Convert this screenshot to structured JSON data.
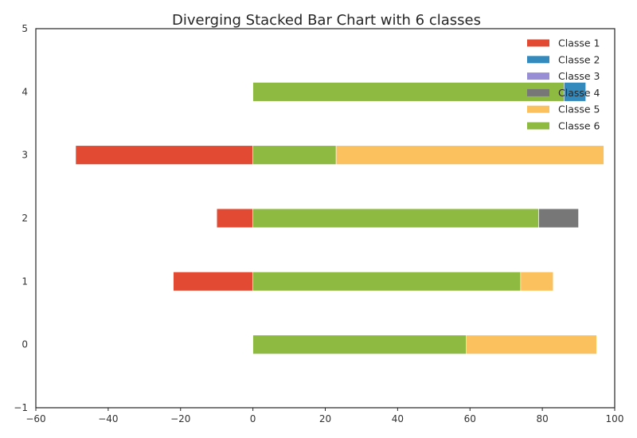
{
  "chart_data": {
    "type": "bar",
    "orientation": "horizontal",
    "stacked": true,
    "diverging": true,
    "title": "Diverging Stacked Bar Chart with 6 classes",
    "xlabel": "",
    "ylabel": "",
    "xlim": [
      -60,
      100
    ],
    "ylim": [
      -1,
      5
    ],
    "x_ticks": [
      -60,
      -40,
      -20,
      0,
      20,
      40,
      60,
      80,
      100
    ],
    "y_ticks": [
      -1,
      0,
      1,
      2,
      3,
      4,
      5
    ],
    "categories": [
      0,
      1,
      2,
      3,
      4
    ],
    "grid": false,
    "legend_position": "top-right",
    "series": [
      {
        "name": "Classe 1",
        "color": "#e24a33",
        "values": [
          0,
          -22,
          -10,
          -49,
          0
        ]
      },
      {
        "name": "Classe 2",
        "color": "#348abd",
        "values": [
          0,
          0,
          0,
          0,
          6
        ]
      },
      {
        "name": "Classe 3",
        "color": "#988ed5",
        "values": [
          0,
          0,
          0,
          0,
          0
        ]
      },
      {
        "name": "Classe 4",
        "color": "#777777",
        "values": [
          0,
          0,
          11,
          0,
          0
        ]
      },
      {
        "name": "Classe 5",
        "color": "#fbc15e",
        "values": [
          36,
          9,
          0,
          74,
          0
        ]
      },
      {
        "name": "Classe 6",
        "color": "#8eba42",
        "values": [
          59,
          74,
          79,
          23,
          86
        ]
      }
    ],
    "stack_order_positive": [
      "Classe 6",
      "Classe 2",
      "Classe 3",
      "Classe 4",
      "Classe 5"
    ]
  }
}
